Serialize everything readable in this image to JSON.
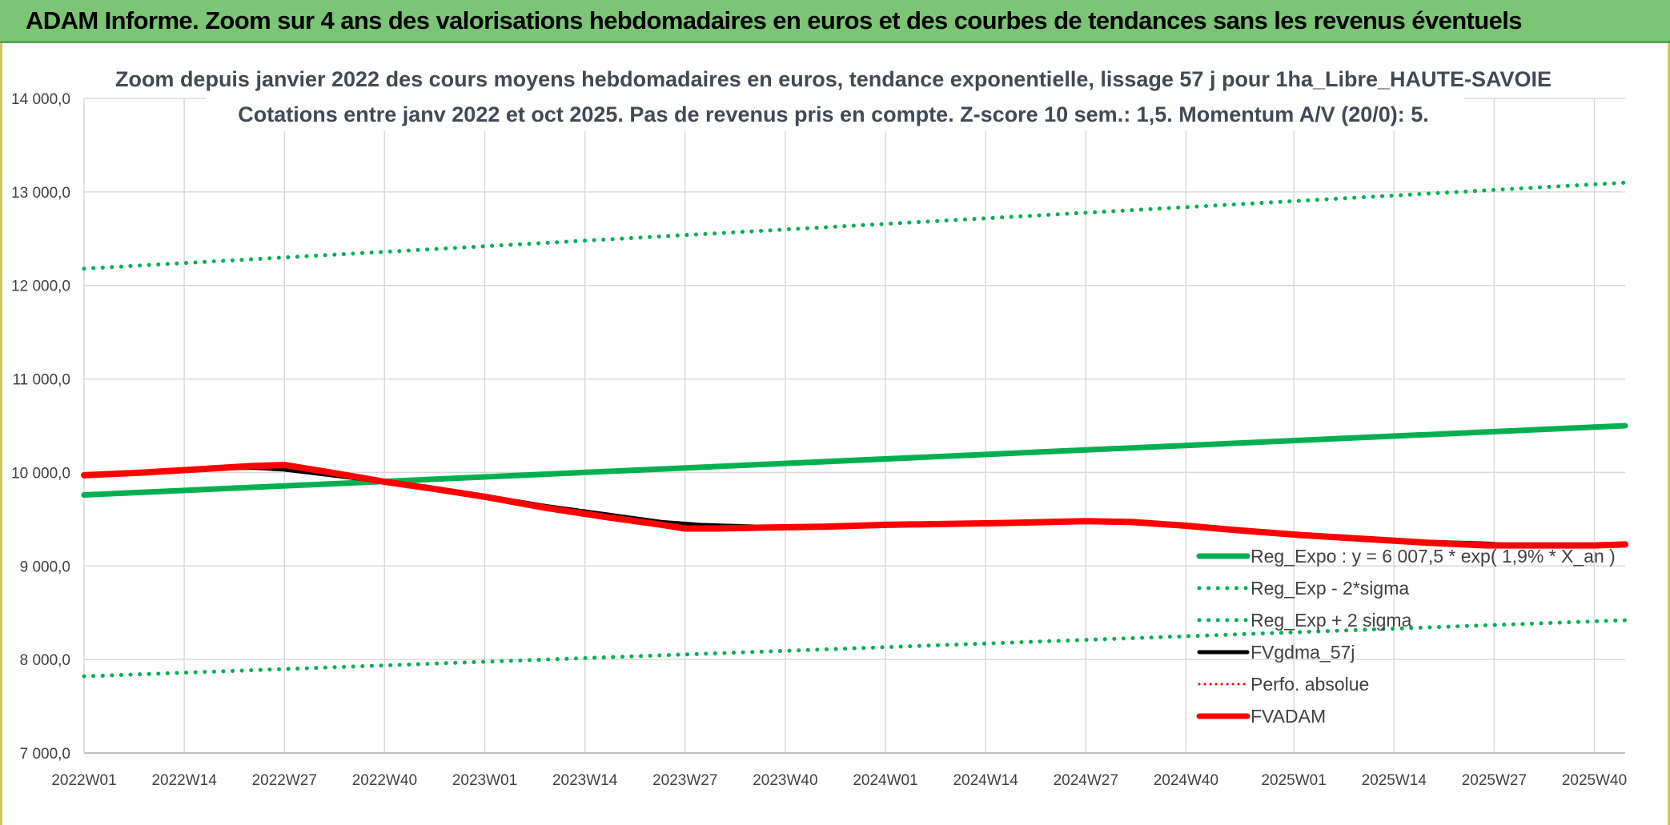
{
  "banner": {
    "title": "ADAM Informe. Zoom sur 4 ans des valorisations hebdomadaires en euros et des courbes de tendances sans les revenus éventuels"
  },
  "chart_data": {
    "type": "line",
    "title_line1": "Zoom depuis janvier 2022 des cours moyens hebdomadaires en euros, tendance exponentielle, lissage 57 j pour 1ha_Libre_HAUTE-SAVOIE",
    "title_line2": "Cotations entre janv 2022 et oct 2025. Pas de revenus pris en compte. Z-score 10 sem.: 1,5. Momentum A/V (20/0): 5.",
    "xlabel": "",
    "ylabel": "",
    "ylim": [
      7000,
      14000
    ],
    "yticks": [
      "7 000,0",
      "8 000,0",
      "9 000,0",
      "10 000,0",
      "11 000,0",
      "12 000,0",
      "13 000,0",
      "14 000,0"
    ],
    "ytick_values": [
      7000,
      8000,
      9000,
      10000,
      11000,
      12000,
      13000,
      14000
    ],
    "x_index_range": [
      0,
      200
    ],
    "xticks": [
      "2022W01",
      "2022W14",
      "2022W27",
      "2022W40",
      "2023W01",
      "2023W14",
      "2023W27",
      "2023W40",
      "2024W01",
      "2024W14",
      "2024W27",
      "2024W40",
      "2025W01",
      "2025W14",
      "2025W27",
      "2025W40"
    ],
    "xtick_index": [
      0,
      13,
      26,
      39,
      52,
      65,
      78,
      91,
      104,
      117,
      130,
      143,
      157,
      170,
      183,
      196
    ],
    "grid": true,
    "legend_position": "bottom-right",
    "series": [
      {
        "name": "Reg_Expo : y = 6 007,5 * exp( 1,9% *  X_an )",
        "style": "solid",
        "color": "#00b050",
        "width": 7,
        "x": [
          0,
          200
        ],
        "y": [
          9760,
          10500
        ]
      },
      {
        "name": "Reg_Exp - 2*sigma",
        "style": "dotted",
        "color": "#00b050",
        "width": 5,
        "x": [
          0,
          200
        ],
        "y": [
          7820,
          8420
        ]
      },
      {
        "name": "Reg_Exp + 2 sigma",
        "style": "dotted",
        "color": "#00b050",
        "width": 5,
        "x": [
          0,
          200
        ],
        "y": [
          12180,
          13100
        ]
      },
      {
        "name": "FVgdma_57j",
        "style": "solid",
        "color": "#000000",
        "width": 5,
        "x": [
          0,
          8,
          16,
          22,
          26,
          32,
          39,
          45,
          52,
          60,
          68,
          75,
          80,
          88,
          96,
          104,
          112,
          120,
          130,
          136,
          143,
          150,
          158,
          166,
          174,
          182,
          188,
          196,
          200
        ],
        "y": [
          9980,
          10010,
          10040,
          10050,
          10030,
          9970,
          9900,
          9830,
          9750,
          9640,
          9550,
          9470,
          9440,
          9420,
          9420,
          9430,
          9450,
          9470,
          9480,
          9470,
          9430,
          9380,
          9340,
          9290,
          9260,
          9240,
          9210,
          9220,
          9230
        ]
      },
      {
        "name": "Perfo. absolue",
        "style": "dotted",
        "color": "#ff0000",
        "width": 3,
        "x": [],
        "y": []
      },
      {
        "name": "FVADAM",
        "style": "solid",
        "color": "#ff0000",
        "width": 8,
        "x": [
          0,
          8,
          16,
          22,
          26,
          32,
          39,
          45,
          52,
          60,
          68,
          75,
          78,
          82,
          88,
          96,
          104,
          112,
          120,
          130,
          136,
          143,
          150,
          158,
          166,
          174,
          182,
          188,
          196,
          200
        ],
        "y": [
          9970,
          10000,
          10040,
          10070,
          10080,
          10000,
          9900,
          9830,
          9740,
          9620,
          9520,
          9440,
          9400,
          9400,
          9410,
          9420,
          9440,
          9450,
          9460,
          9480,
          9470,
          9430,
          9380,
          9330,
          9290,
          9250,
          9220,
          9220,
          9220,
          9230
        ]
      }
    ]
  }
}
